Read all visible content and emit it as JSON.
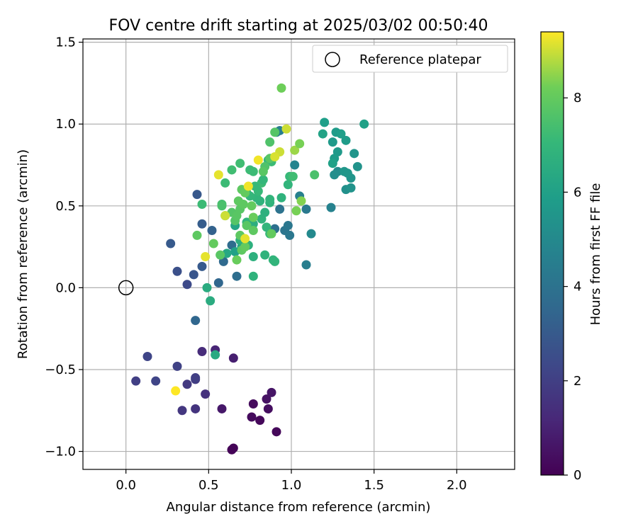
{
  "chart_data": {
    "type": "scatter",
    "title": "FOV centre drift starting at 2025/03/02 00:50:40",
    "xlabel": "Angular distance from reference (arcmin)",
    "ylabel": "Rotation from reference (arcmin)",
    "xlim": [
      -0.26,
      2.35
    ],
    "ylim": [
      -1.11,
      1.52
    ],
    "xticks": [
      0.0,
      0.5,
      1.0,
      1.5,
      2.0
    ],
    "xtick_labels": [
      "0.0",
      "0.5",
      "1.0",
      "1.5",
      "2.0"
    ],
    "yticks": [
      -1.0,
      -0.5,
      0.0,
      0.5,
      1.0,
      1.5
    ],
    "ytick_labels": [
      "−1.0",
      "−0.5",
      "0.0",
      "0.5",
      "1.0",
      "1.5"
    ],
    "grid": true,
    "legend": {
      "position": "top-right",
      "label": "Reference platepar"
    },
    "reference_point": {
      "x": 0.0,
      "y": 0.0
    },
    "colorbar": {
      "label": "Hours from first FF file",
      "range": [
        0,
        9.4
      ],
      "ticks": [
        0,
        2,
        4,
        6,
        8
      ],
      "tick_labels": [
        "0",
        "2",
        "4",
        "6",
        "8"
      ],
      "colormap": "viridis"
    },
    "points": [
      {
        "x": 0.65,
        "y": -0.98,
        "c": 0.1
      },
      {
        "x": 0.64,
        "y": -0.99,
        "c": 0.1
      },
      {
        "x": 0.91,
        "y": -0.88,
        "c": 0.2
      },
      {
        "x": 0.81,
        "y": -0.81,
        "c": 0.2
      },
      {
        "x": 0.76,
        "y": -0.79,
        "c": 0.3
      },
      {
        "x": 0.86,
        "y": -0.74,
        "c": 0.4
      },
      {
        "x": 0.77,
        "y": -0.71,
        "c": 0.3
      },
      {
        "x": 0.85,
        "y": -0.68,
        "c": 0.5
      },
      {
        "x": 0.88,
        "y": -0.64,
        "c": 0.6
      },
      {
        "x": 0.58,
        "y": -0.74,
        "c": 0.7
      },
      {
        "x": 0.65,
        "y": -0.43,
        "c": 0.9
      },
      {
        "x": 0.54,
        "y": -0.38,
        "c": 1.1
      },
      {
        "x": 0.46,
        "y": -0.39,
        "c": 1.3
      },
      {
        "x": 0.48,
        "y": -0.65,
        "c": 1.5
      },
      {
        "x": 0.42,
        "y": -0.74,
        "c": 1.6
      },
      {
        "x": 0.34,
        "y": -0.75,
        "c": 1.7
      },
      {
        "x": 0.37,
        "y": -0.59,
        "c": 1.8
      },
      {
        "x": 0.42,
        "y": -0.56,
        "c": 1.9
      },
      {
        "x": 0.42,
        "y": -0.55,
        "c": 2.0
      },
      {
        "x": 0.31,
        "y": -0.48,
        "c": 2.1
      },
      {
        "x": 0.18,
        "y": -0.57,
        "c": 2.2
      },
      {
        "x": 0.06,
        "y": -0.57,
        "c": 2.0
      },
      {
        "x": 0.13,
        "y": -0.42,
        "c": 2.2
      },
      {
        "x": 0.37,
        "y": 0.02,
        "c": 2.4
      },
      {
        "x": 0.31,
        "y": 0.1,
        "c": 2.6
      },
      {
        "x": 0.41,
        "y": 0.08,
        "c": 2.8
      },
      {
        "x": 0.46,
        "y": 0.13,
        "c": 3.0
      },
      {
        "x": 0.27,
        "y": 0.27,
        "c": 3.0
      },
      {
        "x": 0.43,
        "y": 0.57,
        "c": 2.9
      },
      {
        "x": 0.46,
        "y": 0.39,
        "c": 3.1
      },
      {
        "x": 0.52,
        "y": 0.35,
        "c": 3.3
      },
      {
        "x": 0.56,
        "y": 0.03,
        "c": 3.5
      },
      {
        "x": 0.42,
        "y": -0.2,
        "c": 3.5
      },
      {
        "x": 0.59,
        "y": 0.16,
        "c": 3.6
      },
      {
        "x": 0.64,
        "y": 0.26,
        "c": 3.7
      },
      {
        "x": 0.67,
        "y": 0.07,
        "c": 3.8
      },
      {
        "x": 0.9,
        "y": 0.36,
        "c": 3.9
      },
      {
        "x": 0.93,
        "y": 0.48,
        "c": 4.0
      },
      {
        "x": 0.96,
        "y": 0.35,
        "c": 4.1
      },
      {
        "x": 0.99,
        "y": 0.32,
        "c": 4.2
      },
      {
        "x": 0.98,
        "y": 0.38,
        "c": 4.2
      },
      {
        "x": 1.09,
        "y": 0.48,
        "c": 4.3
      },
      {
        "x": 1.09,
        "y": 0.14,
        "c": 4.5
      },
      {
        "x": 1.05,
        "y": 0.56,
        "c": 4.6
      },
      {
        "x": 1.02,
        "y": 0.75,
        "c": 4.8
      },
      {
        "x": 0.91,
        "y": 0.95,
        "c": 4.4
      },
      {
        "x": 0.93,
        "y": 0.96,
        "c": 4.5
      },
      {
        "x": 1.24,
        "y": 0.49,
        "c": 4.7
      },
      {
        "x": 1.12,
        "y": 0.33,
        "c": 5.0
      },
      {
        "x": 1.28,
        "y": 0.71,
        "c": 5.1
      },
      {
        "x": 1.26,
        "y": 0.69,
        "c": 5.2
      },
      {
        "x": 1.33,
        "y": 0.6,
        "c": 5.3
      },
      {
        "x": 1.36,
        "y": 0.61,
        "c": 5.4
      },
      {
        "x": 1.36,
        "y": 0.67,
        "c": 5.5
      },
      {
        "x": 1.32,
        "y": 0.71,
        "c": 5.6
      },
      {
        "x": 1.34,
        "y": 0.7,
        "c": 5.6
      },
      {
        "x": 1.4,
        "y": 0.74,
        "c": 5.4
      },
      {
        "x": 1.38,
        "y": 0.82,
        "c": 5.5
      },
      {
        "x": 1.28,
        "y": 0.83,
        "c": 5.7
      },
      {
        "x": 1.26,
        "y": 0.79,
        "c": 5.8
      },
      {
        "x": 1.25,
        "y": 0.89,
        "c": 5.7
      },
      {
        "x": 1.27,
        "y": 0.95,
        "c": 5.8
      },
      {
        "x": 1.3,
        "y": 0.94,
        "c": 5.9
      },
      {
        "x": 1.33,
        "y": 0.9,
        "c": 5.8
      },
      {
        "x": 1.2,
        "y": 1.01,
        "c": 5.9
      },
      {
        "x": 1.44,
        "y": 1.0,
        "c": 6.0
      },
      {
        "x": 1.19,
        "y": 0.94,
        "c": 6.1
      },
      {
        "x": 1.25,
        "y": 0.76,
        "c": 6.0
      },
      {
        "x": 0.66,
        "y": 0.22,
        "c": 6.0
      },
      {
        "x": 0.7,
        "y": 0.25,
        "c": 6.1
      },
      {
        "x": 0.66,
        "y": 0.38,
        "c": 6.2
      },
      {
        "x": 0.61,
        "y": 0.21,
        "c": 6.3
      },
      {
        "x": 0.54,
        "y": -0.41,
        "c": 6.4
      },
      {
        "x": 0.49,
        "y": 0.0,
        "c": 6.5
      },
      {
        "x": 0.51,
        "y": -0.08,
        "c": 6.5
      },
      {
        "x": 0.69,
        "y": 0.29,
        "c": 6.6
      },
      {
        "x": 0.74,
        "y": 0.26,
        "c": 6.7
      },
      {
        "x": 0.77,
        "y": 0.19,
        "c": 6.7
      },
      {
        "x": 0.77,
        "y": 0.07,
        "c": 6.8
      },
      {
        "x": 0.84,
        "y": 0.2,
        "c": 6.8
      },
      {
        "x": 0.89,
        "y": 0.17,
        "c": 6.9
      },
      {
        "x": 0.9,
        "y": 0.16,
        "c": 6.9
      },
      {
        "x": 0.73,
        "y": 0.4,
        "c": 6.9
      },
      {
        "x": 0.77,
        "y": 0.39,
        "c": 6.6
      },
      {
        "x": 0.82,
        "y": 0.42,
        "c": 6.8
      },
      {
        "x": 0.84,
        "y": 0.46,
        "c": 6.7
      },
      {
        "x": 0.85,
        "y": 0.37,
        "c": 6.9
      },
      {
        "x": 0.87,
        "y": 0.33,
        "c": 7.1
      },
      {
        "x": 0.94,
        "y": 0.55,
        "c": 6.8
      },
      {
        "x": 0.98,
        "y": 0.63,
        "c": 6.9
      },
      {
        "x": 0.87,
        "y": 0.52,
        "c": 6.8
      },
      {
        "x": 0.87,
        "y": 0.54,
        "c": 6.9
      },
      {
        "x": 0.81,
        "y": 0.53,
        "c": 6.8
      },
      {
        "x": 0.79,
        "y": 0.55,
        "c": 6.9
      },
      {
        "x": 0.73,
        "y": 0.58,
        "c": 7.0
      },
      {
        "x": 0.75,
        "y": 0.56,
        "c": 7.0
      },
      {
        "x": 0.8,
        "y": 0.59,
        "c": 7.1
      },
      {
        "x": 0.82,
        "y": 0.64,
        "c": 7.2
      },
      {
        "x": 0.83,
        "y": 0.66,
        "c": 7.0
      },
      {
        "x": 0.78,
        "y": 0.62,
        "c": 7.1
      },
      {
        "x": 0.75,
        "y": 0.72,
        "c": 7.2
      },
      {
        "x": 0.77,
        "y": 0.71,
        "c": 7.2
      },
      {
        "x": 0.69,
        "y": 0.76,
        "c": 7.3
      },
      {
        "x": 0.64,
        "y": 0.72,
        "c": 7.3
      },
      {
        "x": 0.6,
        "y": 0.64,
        "c": 7.2
      },
      {
        "x": 0.99,
        "y": 0.68,
        "c": 7.1
      },
      {
        "x": 1.01,
        "y": 0.68,
        "c": 7.3
      },
      {
        "x": 1.14,
        "y": 0.69,
        "c": 7.5
      },
      {
        "x": 0.86,
        "y": 0.78,
        "c": 7.0
      },
      {
        "x": 0.88,
        "y": 0.77,
        "c": 7.2
      },
      {
        "x": 0.87,
        "y": 0.89,
        "c": 7.6
      },
      {
        "x": 0.9,
        "y": 0.95,
        "c": 7.7
      },
      {
        "x": 0.87,
        "y": 0.79,
        "c": 7.8
      },
      {
        "x": 0.84,
        "y": 0.74,
        "c": 7.6
      },
      {
        "x": 0.83,
        "y": 0.71,
        "c": 7.8
      },
      {
        "x": 0.58,
        "y": 0.51,
        "c": 7.4
      },
      {
        "x": 0.58,
        "y": 0.5,
        "c": 7.5
      },
      {
        "x": 0.6,
        "y": 0.44,
        "c": 7.6
      },
      {
        "x": 0.64,
        "y": 0.46,
        "c": 7.7
      },
      {
        "x": 0.66,
        "y": 0.41,
        "c": 7.7
      },
      {
        "x": 0.67,
        "y": 0.44,
        "c": 7.8
      },
      {
        "x": 0.69,
        "y": 0.48,
        "c": 7.8
      },
      {
        "x": 0.71,
        "y": 0.51,
        "c": 7.9
      },
      {
        "x": 0.68,
        "y": 0.53,
        "c": 7.9
      },
      {
        "x": 0.7,
        "y": 0.6,
        "c": 7.9
      },
      {
        "x": 0.72,
        "y": 0.58,
        "c": 8.0
      },
      {
        "x": 0.76,
        "y": 0.5,
        "c": 8.0
      },
      {
        "x": 0.77,
        "y": 0.43,
        "c": 8.1
      },
      {
        "x": 0.73,
        "y": 0.38,
        "c": 7.8
      },
      {
        "x": 0.77,
        "y": 0.35,
        "c": 7.9
      },
      {
        "x": 0.88,
        "y": 0.33,
        "c": 8.0
      },
      {
        "x": 0.7,
        "y": 0.23,
        "c": 7.9
      },
      {
        "x": 0.72,
        "y": 0.25,
        "c": 8.0
      },
      {
        "x": 0.67,
        "y": 0.17,
        "c": 8.1
      },
      {
        "x": 0.69,
        "y": 0.32,
        "c": 7.9
      },
      {
        "x": 0.46,
        "y": 0.51,
        "c": 7.2
      },
      {
        "x": 0.43,
        "y": 0.32,
        "c": 7.9
      },
      {
        "x": 0.53,
        "y": 0.27,
        "c": 8.0
      },
      {
        "x": 0.57,
        "y": 0.2,
        "c": 7.8
      },
      {
        "x": 1.03,
        "y": 0.47,
        "c": 8.3
      },
      {
        "x": 1.06,
        "y": 0.53,
        "c": 8.4
      },
      {
        "x": 1.02,
        "y": 0.84,
        "c": 8.6
      },
      {
        "x": 1.05,
        "y": 0.88,
        "c": 8.3
      },
      {
        "x": 0.94,
        "y": 1.22,
        "c": 8.2
      },
      {
        "x": 0.97,
        "y": 0.97,
        "c": 9.0
      },
      {
        "x": 0.93,
        "y": 0.83,
        "c": 9.0
      },
      {
        "x": 0.9,
        "y": 0.8,
        "c": 9.1
      },
      {
        "x": 0.8,
        "y": 0.78,
        "c": 9.3
      },
      {
        "x": 0.56,
        "y": 0.69,
        "c": 9.2
      },
      {
        "x": 0.6,
        "y": 0.44,
        "c": 9.0
      },
      {
        "x": 0.48,
        "y": 0.19,
        "c": 9.2
      },
      {
        "x": 0.72,
        "y": 0.3,
        "c": 9.2
      },
      {
        "x": 0.74,
        "y": 0.62,
        "c": 9.3
      },
      {
        "x": 0.3,
        "y": -0.63,
        "c": 9.4
      }
    ]
  }
}
